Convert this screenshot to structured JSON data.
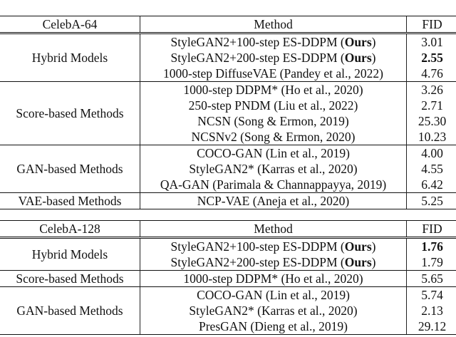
{
  "tables": [
    {
      "dataset": "CelebA-64",
      "method_header": "Method",
      "fid_header": "FID",
      "groups": [
        {
          "name": "Hybrid Models",
          "rows": [
            {
              "prefix": "StyleGAN2+100-step ES-DDPM (",
              "bold": "Ours",
              "suffix": ")",
              "fid": "3.01",
              "fid_bold": false
            },
            {
              "prefix": "StyleGAN2+200-step ES-DDPM (",
              "bold": "Ours",
              "suffix": ")",
              "fid": "2.55",
              "fid_bold": true
            },
            {
              "prefix": "1000-step DiffuseVAE (Pandey et al., 2022)",
              "bold": "",
              "suffix": "",
              "fid": "4.76",
              "fid_bold": false
            }
          ]
        },
        {
          "name": "Score-based Methods",
          "rows": [
            {
              "prefix": "1000-step DDPM* (Ho et al., 2020)",
              "bold": "",
              "suffix": "",
              "fid": "3.26",
              "fid_bold": false
            },
            {
              "prefix": "250-step PNDM (Liu et al., 2022)",
              "bold": "",
              "suffix": "",
              "fid": "2.71",
              "fid_bold": false
            },
            {
              "prefix": "NCSN (Song & Ermon, 2019)",
              "bold": "",
              "suffix": "",
              "fid": "25.30",
              "fid_bold": false
            },
            {
              "prefix": "NCSNv2 (Song & Ermon, 2020)",
              "bold": "",
              "suffix": "",
              "fid": "10.23",
              "fid_bold": false
            }
          ]
        },
        {
          "name": "GAN-based Methods",
          "rows": [
            {
              "prefix": "COCO-GAN (Lin et al., 2019)",
              "bold": "",
              "suffix": "",
              "fid": "4.00",
              "fid_bold": false
            },
            {
              "prefix": "StyleGAN2* (Karras et al., 2020)",
              "bold": "",
              "suffix": "",
              "fid": "4.55",
              "fid_bold": false
            },
            {
              "prefix": "QA-GAN (Parimala & Channappayya, 2019)",
              "bold": "",
              "suffix": "",
              "fid": "6.42",
              "fid_bold": false
            }
          ]
        },
        {
          "name": "VAE-based Methods",
          "rows": [
            {
              "prefix": "NCP-VAE (Aneja et al., 2020)",
              "bold": "",
              "suffix": "",
              "fid": "5.25",
              "fid_bold": false
            }
          ]
        }
      ]
    },
    {
      "dataset": "CelebA-128",
      "method_header": "Method",
      "fid_header": "FID",
      "groups": [
        {
          "name": "Hybrid Models",
          "rows": [
            {
              "prefix": "StyleGAN2+100-step ES-DDPM (",
              "bold": "Ours",
              "suffix": ")",
              "fid": "1.76",
              "fid_bold": true
            },
            {
              "prefix": "StyleGAN2+200-step ES-DDPM (",
              "bold": "Ours",
              "suffix": ")",
              "fid": "1.79",
              "fid_bold": false
            }
          ]
        },
        {
          "name": "Score-based Methods",
          "rows": [
            {
              "prefix": "1000-step DDPM* (Ho et al., 2020)",
              "bold": "",
              "suffix": "",
              "fid": "5.65",
              "fid_bold": false
            }
          ]
        },
        {
          "name": "GAN-based Methods",
          "rows": [
            {
              "prefix": "COCO-GAN (Lin et al., 2019)",
              "bold": "",
              "suffix": "",
              "fid": "5.74",
              "fid_bold": false
            },
            {
              "prefix": "StyleGAN2* (Karras et al., 2020)",
              "bold": "",
              "suffix": "",
              "fid": "2.13",
              "fid_bold": false
            },
            {
              "prefix": "PresGAN (Dieng et al., 2019)",
              "bold": "",
              "suffix": "",
              "fid": "29.12",
              "fid_bold": false
            }
          ]
        }
      ]
    }
  ]
}
